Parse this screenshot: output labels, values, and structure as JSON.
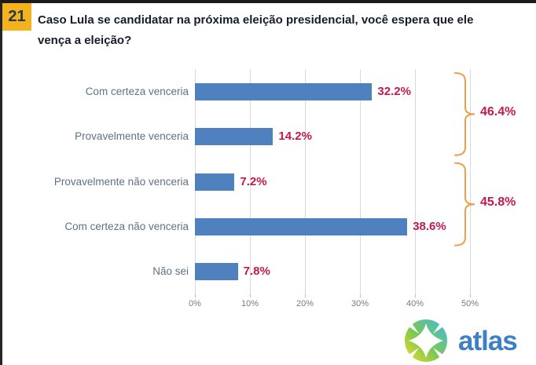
{
  "header": {
    "question_number": "21",
    "title_lines": [
      "Caso Lula se candidatar na próxima eleição presidencial, você espera que ele",
      "vença a eleição?"
    ]
  },
  "chart_data": {
    "type": "bar",
    "orientation": "horizontal",
    "title": "Caso Lula se candidatar na próxima eleição presidencial, você espera que ele vença a eleição?",
    "categories": [
      "Com certeza venceria",
      "Provavelmente venceria",
      "Provavelmente não venceria",
      "Com certeza não venceria",
      "Não sei"
    ],
    "values": [
      32.2,
      14.2,
      7.2,
      38.6,
      7.8
    ],
    "value_labels": [
      "32.2%",
      "14.2%",
      "7.2%",
      "38.6%",
      "7.8%"
    ],
    "xlim": [
      0,
      50
    ],
    "x_tick_values": [
      0,
      10,
      20,
      30,
      40,
      50
    ],
    "x_tick_labels": [
      "0%",
      "10%",
      "20%",
      "30%",
      "40%",
      "50%"
    ],
    "grid": "vertical",
    "legend": "none",
    "groups": [
      {
        "label": "46.4%",
        "from_index": 0,
        "to_index": 1
      },
      {
        "label": "45.8%",
        "from_index": 2,
        "to_index": 3
      }
    ],
    "colors": {
      "bar": "#4E81BD",
      "value_label": "#C4194E",
      "bracket": "#EDA04B",
      "category_label": "#5E7186",
      "axis_label": "#7B7B7B",
      "gridline": "#D9D9D9",
      "badge_bg": "#F2B31C",
      "title_text": "#161D28"
    }
  },
  "branding": {
    "logo_text": "atlas",
    "logo_text_color": "#3E80C5"
  }
}
